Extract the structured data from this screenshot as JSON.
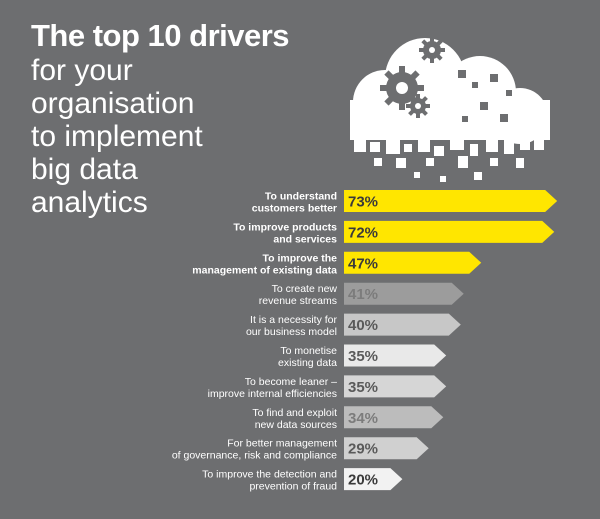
{
  "headline": {
    "bold": "The top 10 drivers",
    "lines": [
      "for your",
      "organisation",
      "to implement",
      "big data",
      "analytics"
    ]
  },
  "chart_data": {
    "type": "bar",
    "orientation": "horizontal",
    "unit": "%",
    "categories": [
      [
        "To understand",
        "customers better"
      ],
      [
        "To improve products",
        "and services"
      ],
      [
        "To improve the",
        "management of existing data"
      ],
      [
        "To create new",
        "revenue streams"
      ],
      [
        "It is a necessity for",
        "our business model"
      ],
      [
        "To monetise",
        "existing data"
      ],
      [
        "To become leaner –",
        "improve internal efficiencies"
      ],
      [
        "To find and exploit",
        "new data sources"
      ],
      [
        "For better management",
        "of governance, risk and compliance"
      ],
      [
        "To improve the detection and",
        "prevention of fraud"
      ]
    ],
    "values": [
      73,
      72,
      47,
      41,
      40,
      35,
      35,
      34,
      29,
      20
    ],
    "bar_colors": [
      "#ffe600",
      "#ffe600",
      "#ffe600",
      "#9c9c9c",
      "#c7c7c7",
      "#e9e9e9",
      "#d6d6d6",
      "#bcbcbc",
      "#d0d0d0",
      "#f2f2f2"
    ],
    "value_text_colors": [
      "#3a3a3a",
      "#3a3a3a",
      "#3a3a3a",
      "#7c7c7c",
      "#5a5a5a",
      "#5a5a5a",
      "#5a5a5a",
      "#7c7c7c",
      "#5a5a5a",
      "#3a3a3a"
    ],
    "bold_labels": [
      true,
      true,
      true,
      false,
      false,
      false,
      false,
      false,
      false,
      false
    ]
  },
  "colors": {
    "background": "#6d6e70",
    "accent": "#ffe600",
    "text": "#ffffff"
  }
}
